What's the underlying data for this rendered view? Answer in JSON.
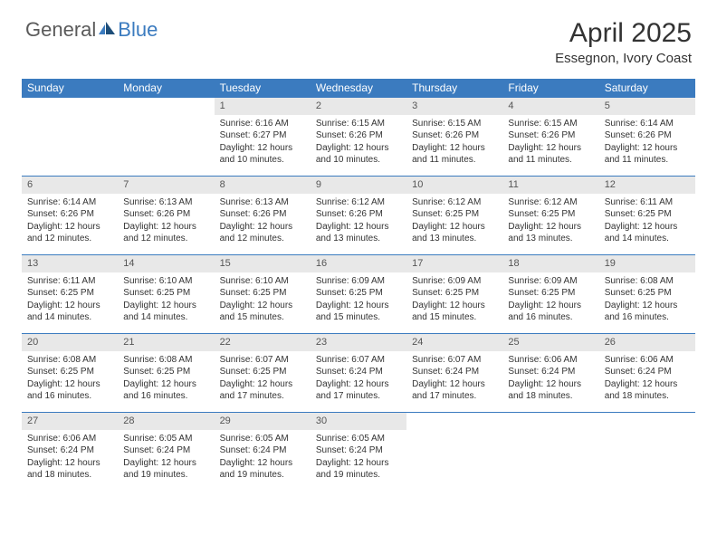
{
  "logo": {
    "general": "General",
    "blue": "Blue"
  },
  "title": "April 2025",
  "location": "Essegnon, Ivory Coast",
  "day_headers": [
    "Sunday",
    "Monday",
    "Tuesday",
    "Wednesday",
    "Thursday",
    "Friday",
    "Saturday"
  ],
  "colors": {
    "header_bg": "#3b7bbf",
    "daynum_bg": "#e8e8e8",
    "week_border": "#3b7bbf",
    "text": "#333333",
    "logo_gray": "#5a5a5a",
    "logo_blue": "#3b7bbf"
  },
  "weeks": [
    [
      {
        "empty": true
      },
      {
        "empty": true
      },
      {
        "num": "1",
        "sunrise": "Sunrise: 6:16 AM",
        "sunset": "Sunset: 6:27 PM",
        "daylight": "Daylight: 12 hours and 10 minutes."
      },
      {
        "num": "2",
        "sunrise": "Sunrise: 6:15 AM",
        "sunset": "Sunset: 6:26 PM",
        "daylight": "Daylight: 12 hours and 10 minutes."
      },
      {
        "num": "3",
        "sunrise": "Sunrise: 6:15 AM",
        "sunset": "Sunset: 6:26 PM",
        "daylight": "Daylight: 12 hours and 11 minutes."
      },
      {
        "num": "4",
        "sunrise": "Sunrise: 6:15 AM",
        "sunset": "Sunset: 6:26 PM",
        "daylight": "Daylight: 12 hours and 11 minutes."
      },
      {
        "num": "5",
        "sunrise": "Sunrise: 6:14 AM",
        "sunset": "Sunset: 6:26 PM",
        "daylight": "Daylight: 12 hours and 11 minutes."
      }
    ],
    [
      {
        "num": "6",
        "sunrise": "Sunrise: 6:14 AM",
        "sunset": "Sunset: 6:26 PM",
        "daylight": "Daylight: 12 hours and 12 minutes."
      },
      {
        "num": "7",
        "sunrise": "Sunrise: 6:13 AM",
        "sunset": "Sunset: 6:26 PM",
        "daylight": "Daylight: 12 hours and 12 minutes."
      },
      {
        "num": "8",
        "sunrise": "Sunrise: 6:13 AM",
        "sunset": "Sunset: 6:26 PM",
        "daylight": "Daylight: 12 hours and 12 minutes."
      },
      {
        "num": "9",
        "sunrise": "Sunrise: 6:12 AM",
        "sunset": "Sunset: 6:26 PM",
        "daylight": "Daylight: 12 hours and 13 minutes."
      },
      {
        "num": "10",
        "sunrise": "Sunrise: 6:12 AM",
        "sunset": "Sunset: 6:25 PM",
        "daylight": "Daylight: 12 hours and 13 minutes."
      },
      {
        "num": "11",
        "sunrise": "Sunrise: 6:12 AM",
        "sunset": "Sunset: 6:25 PM",
        "daylight": "Daylight: 12 hours and 13 minutes."
      },
      {
        "num": "12",
        "sunrise": "Sunrise: 6:11 AM",
        "sunset": "Sunset: 6:25 PM",
        "daylight": "Daylight: 12 hours and 14 minutes."
      }
    ],
    [
      {
        "num": "13",
        "sunrise": "Sunrise: 6:11 AM",
        "sunset": "Sunset: 6:25 PM",
        "daylight": "Daylight: 12 hours and 14 minutes."
      },
      {
        "num": "14",
        "sunrise": "Sunrise: 6:10 AM",
        "sunset": "Sunset: 6:25 PM",
        "daylight": "Daylight: 12 hours and 14 minutes."
      },
      {
        "num": "15",
        "sunrise": "Sunrise: 6:10 AM",
        "sunset": "Sunset: 6:25 PM",
        "daylight": "Daylight: 12 hours and 15 minutes."
      },
      {
        "num": "16",
        "sunrise": "Sunrise: 6:09 AM",
        "sunset": "Sunset: 6:25 PM",
        "daylight": "Daylight: 12 hours and 15 minutes."
      },
      {
        "num": "17",
        "sunrise": "Sunrise: 6:09 AM",
        "sunset": "Sunset: 6:25 PM",
        "daylight": "Daylight: 12 hours and 15 minutes."
      },
      {
        "num": "18",
        "sunrise": "Sunrise: 6:09 AM",
        "sunset": "Sunset: 6:25 PM",
        "daylight": "Daylight: 12 hours and 16 minutes."
      },
      {
        "num": "19",
        "sunrise": "Sunrise: 6:08 AM",
        "sunset": "Sunset: 6:25 PM",
        "daylight": "Daylight: 12 hours and 16 minutes."
      }
    ],
    [
      {
        "num": "20",
        "sunrise": "Sunrise: 6:08 AM",
        "sunset": "Sunset: 6:25 PM",
        "daylight": "Daylight: 12 hours and 16 minutes."
      },
      {
        "num": "21",
        "sunrise": "Sunrise: 6:08 AM",
        "sunset": "Sunset: 6:25 PM",
        "daylight": "Daylight: 12 hours and 16 minutes."
      },
      {
        "num": "22",
        "sunrise": "Sunrise: 6:07 AM",
        "sunset": "Sunset: 6:25 PM",
        "daylight": "Daylight: 12 hours and 17 minutes."
      },
      {
        "num": "23",
        "sunrise": "Sunrise: 6:07 AM",
        "sunset": "Sunset: 6:24 PM",
        "daylight": "Daylight: 12 hours and 17 minutes."
      },
      {
        "num": "24",
        "sunrise": "Sunrise: 6:07 AM",
        "sunset": "Sunset: 6:24 PM",
        "daylight": "Daylight: 12 hours and 17 minutes."
      },
      {
        "num": "25",
        "sunrise": "Sunrise: 6:06 AM",
        "sunset": "Sunset: 6:24 PM",
        "daylight": "Daylight: 12 hours and 18 minutes."
      },
      {
        "num": "26",
        "sunrise": "Sunrise: 6:06 AM",
        "sunset": "Sunset: 6:24 PM",
        "daylight": "Daylight: 12 hours and 18 minutes."
      }
    ],
    [
      {
        "num": "27",
        "sunrise": "Sunrise: 6:06 AM",
        "sunset": "Sunset: 6:24 PM",
        "daylight": "Daylight: 12 hours and 18 minutes."
      },
      {
        "num": "28",
        "sunrise": "Sunrise: 6:05 AM",
        "sunset": "Sunset: 6:24 PM",
        "daylight": "Daylight: 12 hours and 19 minutes."
      },
      {
        "num": "29",
        "sunrise": "Sunrise: 6:05 AM",
        "sunset": "Sunset: 6:24 PM",
        "daylight": "Daylight: 12 hours and 19 minutes."
      },
      {
        "num": "30",
        "sunrise": "Sunrise: 6:05 AM",
        "sunset": "Sunset: 6:24 PM",
        "daylight": "Daylight: 12 hours and 19 minutes."
      },
      {
        "empty": true
      },
      {
        "empty": true
      },
      {
        "empty": true
      }
    ]
  ]
}
